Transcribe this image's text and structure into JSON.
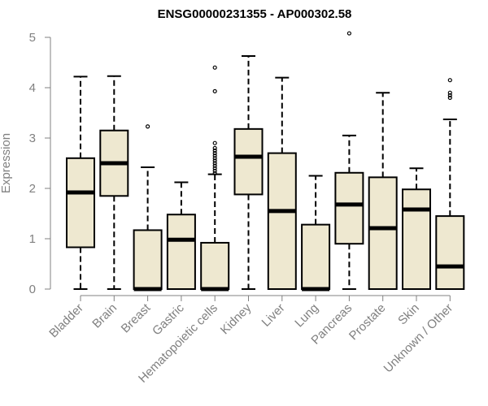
{
  "chart_data": {
    "type": "box",
    "title": "ENSG00000231355 - AP000302.58",
    "ylabel": "Expression",
    "xlabel": "",
    "ylim": [
      0,
      5
    ],
    "yticks": [
      0,
      1,
      2,
      3,
      4,
      5
    ],
    "colors": {
      "box_fill": "#EEE8D0",
      "stroke": "#000000",
      "axis": "#808080",
      "text": "#808080"
    },
    "categories": [
      "Bladder",
      "Brain",
      "Breast",
      "Gastric",
      "Hematopoietic cells",
      "Kidney",
      "Liver",
      "Lung",
      "Pancreas",
      "Prostate",
      "Skin",
      "Unknown / Other"
    ],
    "boxes": [
      {
        "name": "Bladder",
        "min": 0,
        "q1": 0.83,
        "median": 1.92,
        "q3": 2.6,
        "max": 4.22,
        "outliers": []
      },
      {
        "name": "Brain",
        "min": 0,
        "q1": 1.85,
        "median": 2.5,
        "q3": 3.15,
        "max": 4.23,
        "outliers": []
      },
      {
        "name": "Breast",
        "min": 0,
        "q1": 0,
        "median": 0,
        "q3": 1.17,
        "max": 2.42,
        "outliers": [
          3.23
        ]
      },
      {
        "name": "Gastric",
        "min": 0,
        "q1": 0,
        "median": 0.98,
        "q3": 1.48,
        "max": 2.12,
        "outliers": []
      },
      {
        "name": "Hematopoietic cells",
        "min": 0,
        "q1": 0,
        "median": 0,
        "q3": 0.92,
        "max": 2.28,
        "outliers": [
          2.3,
          2.35,
          2.4,
          2.45,
          2.5,
          2.55,
          2.6,
          2.65,
          2.7,
          2.75,
          2.8,
          2.9,
          3.93,
          4.4
        ]
      },
      {
        "name": "Kidney",
        "min": 0,
        "q1": 1.88,
        "median": 2.63,
        "q3": 3.18,
        "max": 4.63,
        "outliers": []
      },
      {
        "name": "Liver",
        "min": 0,
        "q1": 0,
        "median": 1.55,
        "q3": 2.7,
        "max": 4.2,
        "outliers": []
      },
      {
        "name": "Lung",
        "min": 0,
        "q1": 0,
        "median": 0,
        "q3": 1.28,
        "max": 2.25,
        "outliers": []
      },
      {
        "name": "Pancreas",
        "min": 0,
        "q1": 0.9,
        "median": 1.68,
        "q3": 2.31,
        "max": 3.05,
        "outliers": [
          5.08
        ]
      },
      {
        "name": "Prostate",
        "min": 0,
        "q1": 0,
        "median": 1.21,
        "q3": 2.22,
        "max": 3.9,
        "outliers": []
      },
      {
        "name": "Skin",
        "min": 0,
        "q1": 0,
        "median": 1.58,
        "q3": 1.98,
        "max": 2.4,
        "outliers": []
      },
      {
        "name": "Unknown / Other",
        "min": 0,
        "q1": 0,
        "median": 0.45,
        "q3": 1.45,
        "max": 3.37,
        "outliers": [
          3.8,
          3.85,
          3.9,
          4.15
        ]
      }
    ]
  }
}
